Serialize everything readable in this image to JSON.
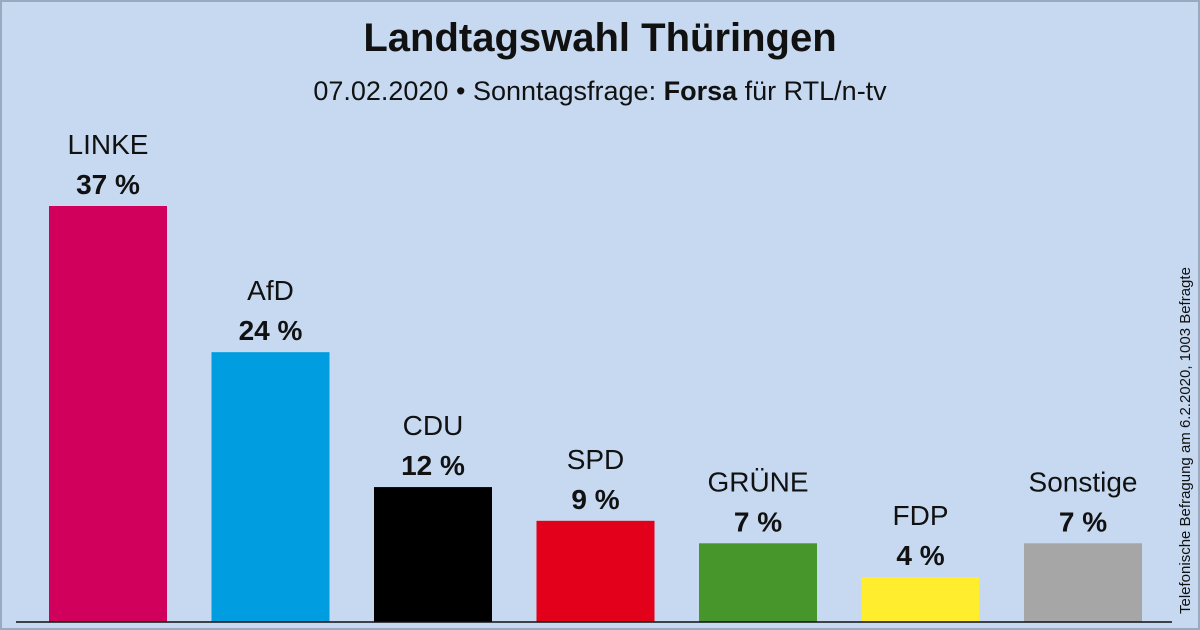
{
  "title": "Landtagswahl Thüringen",
  "subtitle": {
    "date": "07.02.2020",
    "separator": "•",
    "prefix": "Sonntagsfrage:",
    "institute": "Forsa",
    "suffix": "für RTL/n-tv"
  },
  "side_note": "Telefonische Befragung am 6.2.2020, 1003 Befragte",
  "chart_data": {
    "type": "bar",
    "categories": [
      "LINKE",
      "AfD",
      "CDU",
      "SPD",
      "GRÜNE",
      "FDP",
      "Sonstige"
    ],
    "values": [
      37,
      24,
      12,
      9,
      7,
      4,
      7
    ],
    "value_labels": [
      "37 %",
      "24 %",
      "12 %",
      "9 %",
      "7 %",
      "4 %",
      "7 %"
    ],
    "colors": [
      "#d1005c",
      "#009ee0",
      "#000000",
      "#e3001b",
      "#46962b",
      "#ffed2e",
      "#a6a6a6"
    ],
    "unit": "%",
    "ylim": [
      0,
      37
    ],
    "grid": false,
    "legend": "none"
  }
}
